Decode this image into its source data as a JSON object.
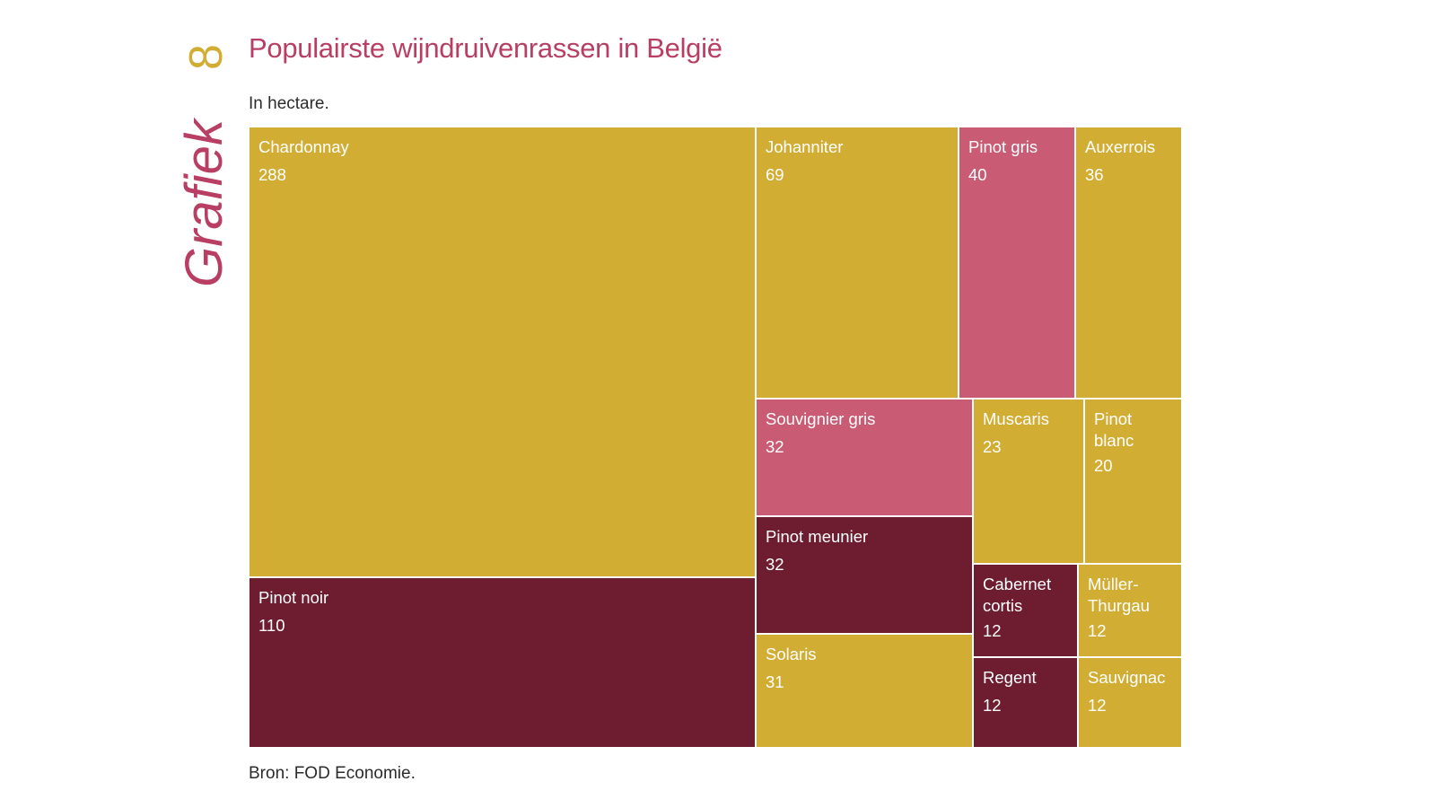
{
  "side_label": {
    "word": "Grafiek",
    "number": "8"
  },
  "colors": {
    "gold": "#D2AD34",
    "rose": "#C95B75",
    "wine": "#6E1D30",
    "title": "#B83E63",
    "tile_border": "#ffffff",
    "tile_text": "#ffffff"
  },
  "chart_data": {
    "type": "treemap",
    "title": "Populairste wijndruivenrassen in België",
    "subtitle": "In hectare.",
    "source": "Bron: FOD Economie.",
    "unit": "hectare",
    "items": [
      {
        "name": "Chardonnay",
        "label_lines": [
          "Chardonnay"
        ],
        "value": 288,
        "color": "gold"
      },
      {
        "name": "Pinot noir",
        "label_lines": [
          "Pinot noir"
        ],
        "value": 110,
        "color": "wine"
      },
      {
        "name": "Johanniter",
        "label_lines": [
          "Johanniter"
        ],
        "value": 69,
        "color": "gold"
      },
      {
        "name": "Pinot gris",
        "label_lines": [
          "Pinot gris"
        ],
        "value": 40,
        "color": "rose"
      },
      {
        "name": "Auxerrois",
        "label_lines": [
          "Auxerrois"
        ],
        "value": 36,
        "color": "gold"
      },
      {
        "name": "Souvignier gris",
        "label_lines": [
          "Souvignier gris"
        ],
        "value": 32,
        "color": "rose"
      },
      {
        "name": "Pinot meunier",
        "label_lines": [
          "Pinot meunier"
        ],
        "value": 32,
        "color": "wine"
      },
      {
        "name": "Solaris",
        "label_lines": [
          "Solaris"
        ],
        "value": 31,
        "color": "gold"
      },
      {
        "name": "Muscaris",
        "label_lines": [
          "Muscaris"
        ],
        "value": 23,
        "color": "gold"
      },
      {
        "name": "Pinot blanc",
        "label_lines": [
          "Pinot",
          "blanc"
        ],
        "value": 20,
        "color": "gold"
      },
      {
        "name": "Cabernet cortis",
        "label_lines": [
          "Cabernet",
          "cortis"
        ],
        "value": 12,
        "color": "wine"
      },
      {
        "name": "Müller-Thurgau",
        "label_lines": [
          "Müller-",
          "Thurgau"
        ],
        "value": 12,
        "color": "gold"
      },
      {
        "name": "Regent",
        "label_lines": [
          "Regent"
        ],
        "value": 12,
        "color": "wine"
      },
      {
        "name": "Sauvignac",
        "label_lines": [
          "Sauvignac"
        ],
        "value": 12,
        "color": "gold"
      }
    ]
  }
}
